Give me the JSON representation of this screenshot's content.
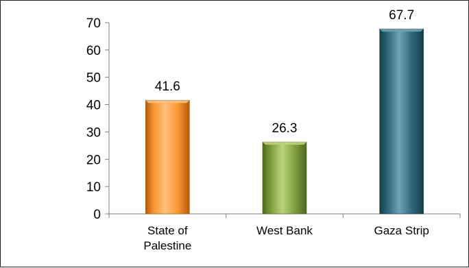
{
  "chart_data": {
    "type": "bar",
    "title": "",
    "xlabel": "",
    "ylabel": "",
    "ylim": [
      0,
      70
    ],
    "yticks": [
      0,
      10,
      20,
      30,
      40,
      50,
      60,
      70
    ],
    "grid": false,
    "legend": "none",
    "categories": [
      [
        "State of",
        "Palestine"
      ],
      [
        "West Bank"
      ],
      [
        "Gaza Strip"
      ]
    ],
    "values": [
      41.6,
      26.3,
      67.7
    ],
    "data_labels": [
      "41.6",
      "26.3",
      "67.7"
    ],
    "colors": [
      {
        "light": "#FDC07A",
        "main": "#F7962F",
        "dark": "#B05A0A"
      },
      {
        "light": "#BCD27C",
        "main": "#7C9C3A",
        "dark": "#4E6620"
      },
      {
        "light": "#6FA3B2",
        "main": "#2E6577",
        "dark": "#173E4B"
      }
    ]
  }
}
